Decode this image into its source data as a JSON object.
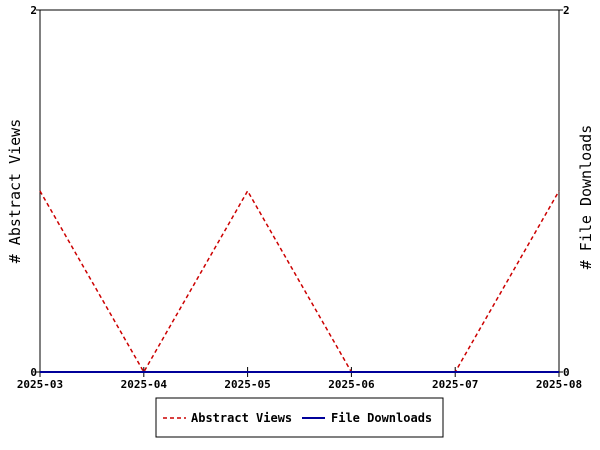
{
  "chart_data": {
    "type": "line",
    "x": [
      "2025-03",
      "2025-04",
      "2025-05",
      "2025-06",
      "2025-07",
      "2025-08"
    ],
    "series": [
      {
        "name": "Abstract Views",
        "axis": "left",
        "color": "#cc0000",
        "dash": "dashed",
        "values": [
          1,
          0,
          1,
          0,
          0,
          1
        ]
      },
      {
        "name": "File Downloads",
        "axis": "right",
        "color": "#000099",
        "dash": "solid",
        "values": [
          0,
          0,
          0,
          0,
          0,
          0
        ]
      }
    ],
    "ylabel_left": "# Abstract Views",
    "ylabel_right": "# File Downloads",
    "ylim_left": [
      0,
      2
    ],
    "ylim_right": [
      0,
      2
    ],
    "yticks_left": [
      "0",
      "2"
    ],
    "yticks_right": [
      "0",
      "2"
    ],
    "grid": false,
    "legend_position": "bottom-center"
  }
}
